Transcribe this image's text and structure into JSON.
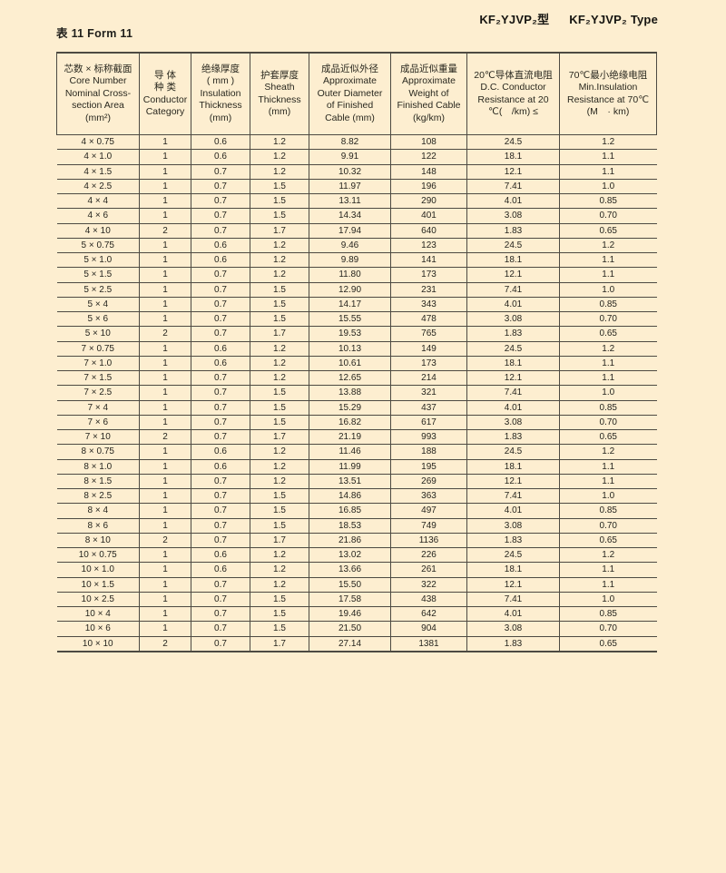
{
  "page": {
    "background": "#fdeed0",
    "line_color": "#4d4a42",
    "table_caption": "表 11 Form 11",
    "model_title": "KF₂YJVP₂型",
    "type_title": "KF₂YJVP₂ Type"
  },
  "table": {
    "columns": [
      {
        "name": "core-number",
        "lines": [
          "芯数 × 标称截面",
          "Core Number",
          "Nominal Cross-",
          "section Area",
          "(mm²)"
        ]
      },
      {
        "name": "conductor-category",
        "lines": [
          "导 体",
          "种 类",
          "Conductor",
          "Category"
        ]
      },
      {
        "name": "insulation-thickness",
        "lines": [
          "绝缘厚度",
          "( mm )",
          "Insulation",
          "Thickness",
          "(mm)"
        ]
      },
      {
        "name": "sheath-thickness",
        "lines": [
          "护套厚度",
          "Sheath",
          "Thickness",
          "(mm)"
        ]
      },
      {
        "name": "outer-diameter",
        "lines": [
          "成品近似外径",
          "Approximate",
          "Outer Diameter",
          "of Finished",
          "Cable (mm)"
        ]
      },
      {
        "name": "weight",
        "lines": [
          "成品近似重量",
          "Approximate",
          "Weight of",
          "Finished Cable",
          "(kg/km)"
        ]
      },
      {
        "name": "dc-resistance",
        "lines": [
          "20℃导体直流电阻",
          "D.C. Conductor",
          "Resistance at 20",
          "℃( /km) ≤"
        ]
      },
      {
        "name": "min-insulation-resistance",
        "lines": [
          "70℃最小绝缘电阻",
          "Min.Insulation",
          "Resistance at 70℃",
          "(M · km)"
        ]
      }
    ],
    "rows": [
      [
        "4 × 0.75",
        "1",
        "0.6",
        "1.2",
        "8.82",
        "108",
        "24.5",
        "1.2"
      ],
      [
        "4 × 1.0",
        "1",
        "0.6",
        "1.2",
        "9.91",
        "122",
        "18.1",
        "1.1"
      ],
      [
        "4 × 1.5",
        "1",
        "0.7",
        "1.2",
        "10.32",
        "148",
        "12.1",
        "1.1"
      ],
      [
        "4 × 2.5",
        "1",
        "0.7",
        "1.5",
        "11.97",
        "196",
        "7.41",
        "1.0"
      ],
      [
        "4 × 4",
        "1",
        "0.7",
        "1.5",
        "13.11",
        "290",
        "4.01",
        "0.85"
      ],
      [
        "4 × 6",
        "1",
        "0.7",
        "1.5",
        "14.34",
        "401",
        "3.08",
        "0.70"
      ],
      [
        "4 × 10",
        "2",
        "0.7",
        "1.7",
        "17.94",
        "640",
        "1.83",
        "0.65"
      ],
      [
        "5 × 0.75",
        "1",
        "0.6",
        "1.2",
        "9.46",
        "123",
        "24.5",
        "1.2"
      ],
      [
        "5 × 1.0",
        "1",
        "0.6",
        "1.2",
        "9.89",
        "141",
        "18.1",
        "1.1"
      ],
      [
        "5 × 1.5",
        "1",
        "0.7",
        "1.2",
        "11.80",
        "173",
        "12.1",
        "1.1"
      ],
      [
        "5 × 2.5",
        "1",
        "0.7",
        "1.5",
        "12.90",
        "231",
        "7.41",
        "1.0"
      ],
      [
        "5 × 4",
        "1",
        "0.7",
        "1.5",
        "14.17",
        "343",
        "4.01",
        "0.85"
      ],
      [
        "5 × 6",
        "1",
        "0.7",
        "1.5",
        "15.55",
        "478",
        "3.08",
        "0.70"
      ],
      [
        "5 × 10",
        "2",
        "0.7",
        "1.7",
        "19.53",
        "765",
        "1.83",
        "0.65"
      ],
      [
        "7 × 0.75",
        "1",
        "0.6",
        "1.2",
        "10.13",
        "149",
        "24.5",
        "1.2"
      ],
      [
        "7 × 1.0",
        "1",
        "0.6",
        "1.2",
        "10.61",
        "173",
        "18.1",
        "1.1"
      ],
      [
        "7 × 1.5",
        "1",
        "0.7",
        "1.2",
        "12.65",
        "214",
        "12.1",
        "1.1"
      ],
      [
        "7 × 2.5",
        "1",
        "0.7",
        "1.5",
        "13.88",
        "321",
        "7.41",
        "1.0"
      ],
      [
        "7 × 4",
        "1",
        "0.7",
        "1.5",
        "15.29",
        "437",
        "4.01",
        "0.85"
      ],
      [
        "7 × 6",
        "1",
        "0.7",
        "1.5",
        "16.82",
        "617",
        "3.08",
        "0.70"
      ],
      [
        "7 × 10",
        "2",
        "0.7",
        "1.7",
        "21.19",
        "993",
        "1.83",
        "0.65"
      ],
      [
        "8 × 0.75",
        "1",
        "0.6",
        "1.2",
        "11.46",
        "188",
        "24.5",
        "1.2"
      ],
      [
        "8 × 1.0",
        "1",
        "0.6",
        "1.2",
        "11.99",
        "195",
        "18.1",
        "1.1"
      ],
      [
        "8 × 1.5",
        "1",
        "0.7",
        "1.2",
        "13.51",
        "269",
        "12.1",
        "1.1"
      ],
      [
        "8 × 2.5",
        "1",
        "0.7",
        "1.5",
        "14.86",
        "363",
        "7.41",
        "1.0"
      ],
      [
        "8 × 4",
        "1",
        "0.7",
        "1.5",
        "16.85",
        "497",
        "4.01",
        "0.85"
      ],
      [
        "8 × 6",
        "1",
        "0.7",
        "1.5",
        "18.53",
        "749",
        "3.08",
        "0.70"
      ],
      [
        "8 × 10",
        "2",
        "0.7",
        "1.7",
        "21.86",
        "1136",
        "1.83",
        "0.65"
      ],
      [
        "10 × 0.75",
        "1",
        "0.6",
        "1.2",
        "13.02",
        "226",
        "24.5",
        "1.2"
      ],
      [
        "10 × 1.0",
        "1",
        "0.6",
        "1.2",
        "13.66",
        "261",
        "18.1",
        "1.1"
      ],
      [
        "10 × 1.5",
        "1",
        "0.7",
        "1.2",
        "15.50",
        "322",
        "12.1",
        "1.1"
      ],
      [
        "10 × 2.5",
        "1",
        "0.7",
        "1.5",
        "17.58",
        "438",
        "7.41",
        "1.0"
      ],
      [
        "10 × 4",
        "1",
        "0.7",
        "1.5",
        "19.46",
        "642",
        "4.01",
        "0.85"
      ],
      [
        "10 × 6",
        "1",
        "0.7",
        "1.5",
        "21.50",
        "904",
        "3.08",
        "0.70"
      ],
      [
        "10 × 10",
        "2",
        "0.7",
        "1.7",
        "27.14",
        "1381",
        "1.83",
        "0.65"
      ]
    ]
  }
}
